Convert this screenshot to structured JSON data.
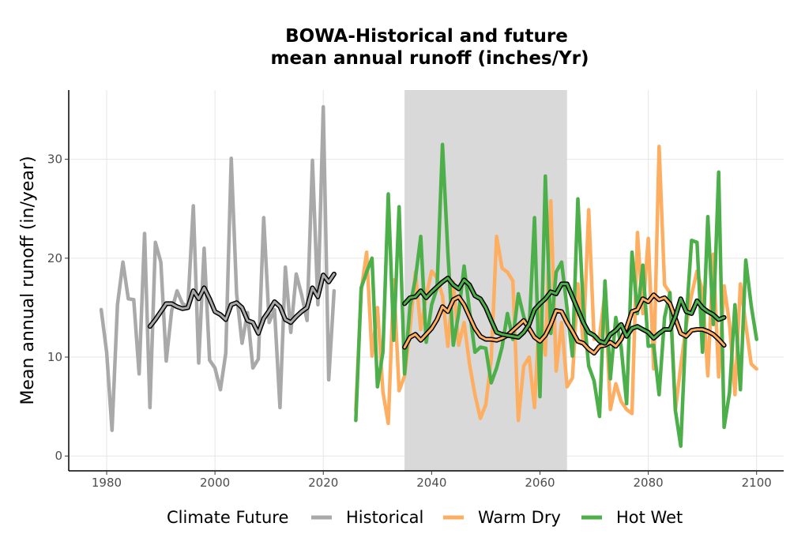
{
  "chart_data": {
    "type": "line",
    "title_line1": "BOWA-Historical and future",
    "title_line2": "mean annual runoff (inches/Yr)",
    "xlabel": "",
    "ylabel": "Mean annual runoff (in/year)",
    "xlim": [
      1973,
      2105
    ],
    "ylim": [
      -1.5,
      37
    ],
    "x_ticks": [
      1980,
      2000,
      2020,
      2040,
      2060,
      2080,
      2100
    ],
    "y_ticks": [
      0,
      10,
      20,
      30
    ],
    "grid": true,
    "shaded_period": [
      2035,
      2065
    ],
    "legend": {
      "position": "bottom",
      "title": "Climate Future",
      "entries": [
        "Historical",
        "Warm Dry",
        "Hot Wet"
      ]
    },
    "colors": {
      "Historical": "#a9a9a9",
      "Warm Dry": "#fdae61",
      "Hot Wet": "#4daf4a",
      "smooth": "#000000",
      "shade": "#d9d9d9",
      "grid": "#e5e5e5"
    },
    "series": [
      {
        "name": "Historical",
        "x_start": 1979,
        "values": [
          14.8,
          10.5,
          2.6,
          15.3,
          19.6,
          15.9,
          15.8,
          8.3,
          22.5,
          4.9,
          21.6,
          19.6,
          9.6,
          14.7,
          16.7,
          15.4,
          15.1,
          25.3,
          9.4,
          21.0,
          9.7,
          8.9,
          6.7,
          10.4,
          30.1,
          16.4,
          11.4,
          14.5,
          8.9,
          9.8,
          24.1,
          13.5,
          14.8,
          4.9,
          19.1,
          12.5,
          18.4,
          16.3,
          13.7,
          29.9,
          15.3,
          35.3,
          7.7,
          16.7
        ]
      },
      {
        "name": "Warm Dry",
        "x_start": 2026,
        "values": [
          4.6,
          16.7,
          20.6,
          10.1,
          15.0,
          6.5,
          3.3,
          17.8,
          6.6,
          8.1,
          12.8,
          18.6,
          12.8,
          16.2,
          18.7,
          18.0,
          16.2,
          11.1,
          17.6,
          11.2,
          13.5,
          9.3,
          6.2,
          3.8,
          5.2,
          9.8,
          22.2,
          19.0,
          18.6,
          17.7,
          3.6,
          9.1,
          10.0,
          4.9,
          15.4,
          10.2,
          25.8,
          8.6,
          13.5,
          7.0,
          7.9,
          17.4,
          11.4,
          24.9,
          11.8,
          12.1,
          16.5,
          4.7,
          7.3,
          5.5,
          4.7,
          4.3,
          22.6,
          14.4,
          22.0,
          8.8,
          31.3,
          17.3,
          16.5,
          4.6,
          9.1,
          13.2,
          16.3,
          18.7,
          16.7,
          8.1,
          20.4,
          8.0,
          17.2,
          13.4,
          6.2,
          17.4,
          13.3,
          9.3,
          8.8
        ]
      },
      {
        "name": "Hot Wet",
        "x_start": 2026,
        "values": [
          3.6,
          17.0,
          18.6,
          20.0,
          7.0,
          10.5,
          26.5,
          11.7,
          25.2,
          8.3,
          15.1,
          17.9,
          22.2,
          11.5,
          15.3,
          17.0,
          31.5,
          20.6,
          11.2,
          14.4,
          19.2,
          14.7,
          10.5,
          11.0,
          10.9,
          7.4,
          8.9,
          11.0,
          14.4,
          11.8,
          16.4,
          14.1,
          12.7,
          24.1,
          6.0,
          28.3,
          12.4,
          18.6,
          19.6,
          14.9,
          10.1,
          26.0,
          15.0,
          9.1,
          7.6,
          4.0,
          17.7,
          7.8,
          14.0,
          11.0,
          5.3,
          20.6,
          14.4,
          19.3,
          11.1,
          11.2,
          6.2,
          14.0,
          16.5,
          4.6,
          1.0,
          13.7,
          21.8,
          21.6,
          10.5,
          24.2,
          13.3,
          28.7,
          2.9,
          6.4,
          15.3,
          6.7,
          19.8,
          15.2,
          11.8
        ]
      },
      {
        "name": "",
        "smooth_of": "Historical",
        "x_start": 1988,
        "values": [
          13.1,
          13.8,
          14.6,
          15.4,
          15.4,
          15.1,
          14.9,
          15.0,
          16.7,
          15.9,
          17.0,
          15.9,
          14.6,
          14.3,
          13.8,
          15.3,
          15.5,
          15.0,
          13.7,
          13.5,
          12.4,
          13.9,
          14.7,
          15.6,
          15.1,
          13.8,
          13.5,
          14.1,
          14.6,
          15.0,
          17.0,
          16.1,
          18.3,
          17.6,
          18.4
        ]
      },
      {
        "name": "",
        "smooth_of": "Warm Dry",
        "x_start": 2035,
        "values": [
          11.0,
          12.0,
          12.3,
          11.7,
          12.3,
          12.9,
          13.8,
          15.1,
          14.6,
          15.8,
          16.1,
          15.3,
          14.1,
          12.9,
          12.1,
          11.8,
          11.8,
          11.7,
          11.9,
          12.2,
          12.7,
          13.2,
          13.7,
          12.9,
          12.0,
          11.6,
          12.2,
          13.3,
          14.7,
          14.6,
          13.5,
          12.6,
          11.6,
          11.4,
          10.8,
          10.4,
          11.1,
          11.2,
          11.5,
          11.1,
          11.8,
          13.0,
          14.6,
          14.8,
          15.9,
          15.6,
          16.3,
          15.8,
          16.0,
          15.4,
          13.9,
          12.4,
          12.1,
          12.7,
          12.8,
          12.8,
          12.6,
          12.3,
          11.8,
          11.2
        ]
      },
      {
        "name": "",
        "smooth_of": "Hot Wet",
        "x_start": 2035,
        "values": [
          15.4,
          16.0,
          16.1,
          16.7,
          16.0,
          16.6,
          17.1,
          17.6,
          18.0,
          17.3,
          16.9,
          17.8,
          17.3,
          16.2,
          15.9,
          15.0,
          13.7,
          12.5,
          12.3,
          12.2,
          12.1,
          12.0,
          12.5,
          13.3,
          14.8,
          15.4,
          15.9,
          16.6,
          16.4,
          17.4,
          17.4,
          16.1,
          14.8,
          13.5,
          12.5,
          12.2,
          11.6,
          11.4,
          12.3,
          12.7,
          13.3,
          12.1,
          12.9,
          13.1,
          12.8,
          12.5,
          11.9,
          12.4,
          12.8,
          12.8,
          14.1,
          15.9,
          14.6,
          14.4,
          15.7,
          15.0,
          14.6,
          14.3,
          13.8,
          14.0
        ]
      }
    ]
  }
}
